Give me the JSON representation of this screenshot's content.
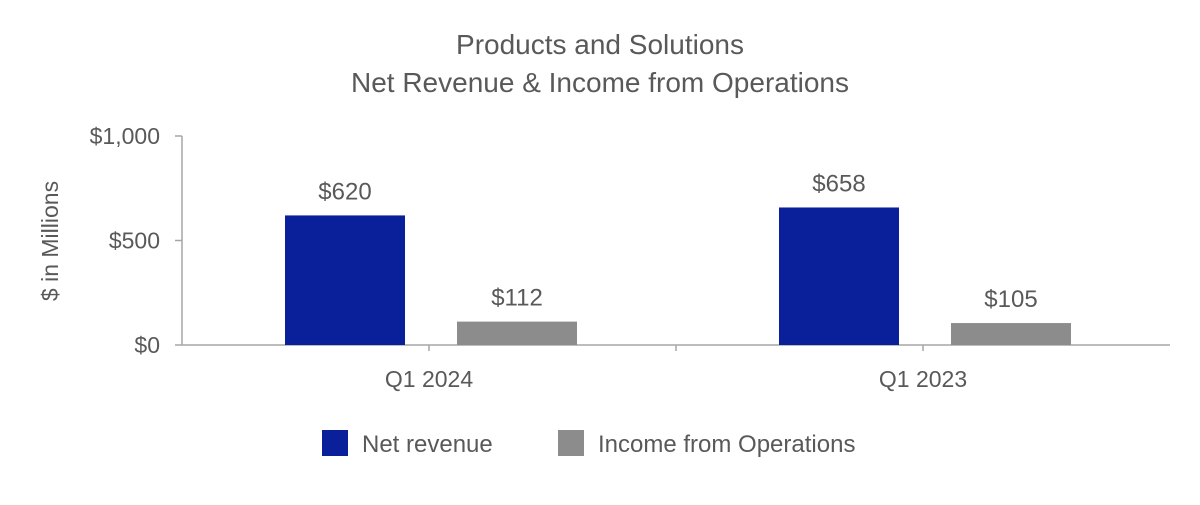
{
  "chart_data": {
    "type": "bar",
    "title": "Products and Solutions",
    "subtitle": "Net Revenue & Income from Operations",
    "ylabel": "$ in Millions",
    "xlabel": "",
    "categories": [
      "Q1 2024",
      "Q1 2023"
    ],
    "series": [
      {
        "name": "Net revenue",
        "color": "#0a209a",
        "values": [
          620,
          658
        ],
        "labels": [
          "$620",
          "$658"
        ]
      },
      {
        "name": "Income from Operations",
        "color": "#8c8c8c",
        "values": [
          112,
          105
        ],
        "labels": [
          "$112",
          "$105"
        ]
      }
    ],
    "ylim": [
      0,
      1000
    ],
    "yticks": [
      0,
      500,
      1000
    ],
    "ytick_labels": [
      "$0",
      "$500",
      "$1,000"
    ],
    "grid": false,
    "legend_position": "bottom"
  }
}
